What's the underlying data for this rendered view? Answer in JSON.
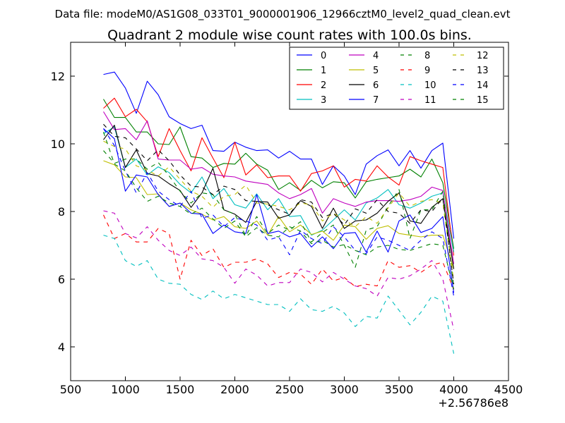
{
  "chart_data": {
    "type": "line",
    "suptitle": "Data file: modeM0/AS1G08_033T01_9000001906_12966cztM0_level2_quad_clean.evt",
    "title": "Quadrant 2 module wise count rates with 100.0s bins.",
    "xlabel": "",
    "ylabel": "",
    "offset_label": "+2.56786e8",
    "xlim": [
      500,
      4500
    ],
    "ylim": [
      3,
      13
    ],
    "xticks": [
      500,
      1000,
      1500,
      2000,
      2500,
      3000,
      3500,
      4000,
      4500
    ],
    "yticks": [
      4,
      6,
      8,
      10,
      12
    ],
    "grid": false,
    "legend_position": "top-right",
    "x": [
      800,
      900,
      1000,
      1100,
      1200,
      1300,
      1400,
      1500,
      1600,
      1700,
      1800,
      1900,
      2000,
      2100,
      2200,
      2300,
      2400,
      2500,
      2600,
      2700,
      2800,
      2900,
      3000,
      3100,
      3200,
      3300,
      3400,
      3500,
      3600,
      3700,
      3800,
      3900,
      4000
    ],
    "series": [
      {
        "name": "0",
        "color": "#0000ff",
        "dash": "solid",
        "values": [
          12.05,
          12.12,
          11.65,
          10.9,
          11.85,
          11.45,
          10.8,
          10.6,
          10.45,
          10.55,
          9.8,
          9.78,
          10.05,
          9.9,
          9.8,
          9.82,
          9.58,
          9.78,
          9.55,
          9.55,
          8.8,
          9.35,
          9.05,
          8.5,
          9.4,
          9.65,
          9.82,
          9.35,
          9.8,
          9.28,
          9.8,
          10.02,
          7.2
        ]
      },
      {
        "name": "1",
        "color": "#008000",
        "dash": "solid",
        "values": [
          11.32,
          10.78,
          10.78,
          10.35,
          10.35,
          10.0,
          9.98,
          10.5,
          9.62,
          9.58,
          9.3,
          9.42,
          9.4,
          9.72,
          9.4,
          9.22,
          8.65,
          8.85,
          8.62,
          8.92,
          8.7,
          8.88,
          8.85,
          8.4,
          8.88,
          8.95,
          9.0,
          9.05,
          9.25,
          9.02,
          9.55,
          8.85,
          6.9
        ]
      },
      {
        "name": "2",
        "color": "#ff0000",
        "dash": "solid",
        "values": [
          11.05,
          11.35,
          10.8,
          11.02,
          10.65,
          9.62,
          10.45,
          9.8,
          9.2,
          10.18,
          9.58,
          9.0,
          10.05,
          9.08,
          9.38,
          9.0,
          9.05,
          9.05,
          8.6,
          9.12,
          9.2,
          9.35,
          8.72,
          8.95,
          8.9,
          9.35,
          9.02,
          8.78,
          9.62,
          9.5,
          9.4,
          9.3,
          6.7
        ]
      },
      {
        "name": "3",
        "color": "#00bfbf",
        "dash": "solid",
        "values": [
          10.3,
          10.5,
          9.3,
          9.55,
          9.08,
          9.32,
          9.15,
          8.8,
          8.55,
          9.02,
          8.38,
          8.68,
          8.2,
          8.1,
          8.52,
          8.05,
          8.38,
          7.85,
          7.88,
          7.3,
          7.45,
          7.75,
          8.05,
          7.75,
          8.25,
          8.4,
          8.65,
          8.2,
          8.1,
          8.25,
          8.45,
          8.55,
          6.8
        ]
      },
      {
        "name": "4",
        "color": "#bf00bf",
        "dash": "solid",
        "values": [
          10.95,
          10.42,
          10.45,
          10.12,
          10.68,
          9.55,
          9.52,
          9.52,
          9.25,
          9.3,
          9.1,
          9.05,
          9.02,
          8.9,
          8.85,
          8.8,
          8.55,
          8.38,
          8.5,
          8.68,
          7.95,
          8.38,
          8.25,
          8.15,
          8.28,
          8.32,
          8.32,
          8.3,
          8.35,
          8.45,
          8.72,
          8.62,
          6.45
        ]
      },
      {
        "name": "5",
        "color": "#bfbf00",
        "dash": "solid",
        "values": [
          9.5,
          9.38,
          9.02,
          9.0,
          8.5,
          8.52,
          8.15,
          8.25,
          8.05,
          7.92,
          7.75,
          7.85,
          7.55,
          7.5,
          7.72,
          7.3,
          7.85,
          7.4,
          7.6,
          7.32,
          7.42,
          7.15,
          7.6,
          7.55,
          7.18,
          7.5,
          7.58,
          7.35,
          7.3,
          7.25,
          7.3,
          7.3,
          6.3
        ]
      },
      {
        "name": "6",
        "color": "#000000",
        "dash": "solid",
        "values": [
          10.12,
          10.55,
          9.3,
          9.82,
          9.12,
          9.05,
          8.82,
          8.62,
          8.12,
          8.55,
          9.28,
          8.05,
          7.92,
          7.68,
          8.3,
          8.28,
          7.8,
          7.9,
          8.32,
          8.15,
          7.5,
          8.1,
          7.5,
          7.72,
          7.75,
          7.95,
          8.3,
          8.55,
          7.72,
          7.65,
          8.12,
          8.38,
          6.3
        ]
      },
      {
        "name": "7",
        "color": "#0000ff",
        "dash": "solid",
        "values": [
          10.45,
          10.15,
          8.6,
          9.08,
          9.02,
          8.5,
          8.15,
          8.25,
          7.95,
          7.92,
          7.35,
          7.6,
          7.4,
          7.35,
          8.5,
          7.35,
          7.42,
          7.25,
          7.35,
          6.95,
          7.25,
          6.9,
          7.35,
          7.38,
          6.8,
          7.42,
          6.8,
          7.72,
          7.9,
          7.38,
          7.5,
          7.85,
          5.6
        ]
      },
      {
        "name": "8",
        "color": "#008000",
        "dash": "dashed",
        "values": [
          9.8,
          9.42,
          9.55,
          9.55,
          9.25,
          9.45,
          9.05,
          8.6,
          8.25,
          8.55,
          8.5,
          8.05,
          7.92,
          7.28,
          7.85,
          7.35,
          7.6,
          7.45,
          7.7,
          7.1,
          7.38,
          7.6,
          7.0,
          6.35,
          7.45,
          7.55,
          8.15,
          8.65,
          7.2,
          8.05,
          8.05,
          8.6,
          5.75
        ]
      },
      {
        "name": "9",
        "color": "#ff0000",
        "dash": "dashed",
        "values": [
          7.9,
          7.2,
          7.35,
          7.1,
          7.1,
          7.5,
          7.35,
          6.0,
          7.15,
          6.7,
          6.9,
          6.35,
          6.5,
          6.5,
          6.6,
          6.45,
          6.05,
          6.2,
          6.15,
          5.85,
          6.3,
          5.95,
          6.05,
          5.78,
          5.85,
          5.8,
          6.55,
          6.35,
          6.4,
          6.2,
          6.42,
          6.5,
          5.7
        ]
      },
      {
        "name": "10",
        "color": "#00bfbf",
        "dash": "dashed",
        "values": [
          7.3,
          7.2,
          6.55,
          6.38,
          6.55,
          6.0,
          5.88,
          5.85,
          5.55,
          5.4,
          5.65,
          5.42,
          5.55,
          5.45,
          5.35,
          5.25,
          5.25,
          5.05,
          5.42,
          5.1,
          5.05,
          5.2,
          5.0,
          4.6,
          4.9,
          4.85,
          5.5,
          5.08,
          4.65,
          5.02,
          5.5,
          5.35,
          3.8
        ]
      },
      {
        "name": "11",
        "color": "#bf00bf",
        "dash": "dashed",
        "values": [
          8.02,
          7.95,
          7.35,
          7.22,
          7.55,
          7.15,
          6.85,
          6.7,
          6.95,
          6.6,
          6.55,
          6.35,
          5.88,
          6.3,
          6.12,
          5.8,
          5.9,
          5.9,
          6.3,
          6.2,
          5.92,
          6.2,
          6.0,
          5.8,
          5.72,
          5.5,
          6.05,
          6.0,
          6.1,
          6.3,
          6.55,
          6.0,
          4.5
        ]
      },
      {
        "name": "12",
        "color": "#bfbf00",
        "dash": "dashed",
        "values": [
          10.08,
          9.92,
          9.85,
          9.35,
          9.22,
          9.05,
          9.32,
          8.95,
          8.6,
          8.45,
          8.12,
          8.45,
          8.5,
          8.78,
          8.25,
          8.22,
          8.15,
          8.05,
          8.25,
          8.2,
          7.72,
          7.95,
          7.75,
          7.55,
          7.85,
          7.65,
          8.1,
          8.55,
          8.15,
          8.3,
          8.35,
          8.25,
          5.95
        ]
      },
      {
        "name": "13",
        "color": "#000000",
        "dash": "dashed",
        "values": [
          10.58,
          10.22,
          10.18,
          9.85,
          9.5,
          9.82,
          9.5,
          9.08,
          8.75,
          8.72,
          8.5,
          8.75,
          8.65,
          8.32,
          8.3,
          8.2,
          8.05,
          7.92,
          8.35,
          8.28,
          7.82,
          7.95,
          7.6,
          8.08,
          7.95,
          8.35,
          8.0,
          7.95,
          7.65,
          8.05,
          8.0,
          8.4,
          5.85
        ]
      },
      {
        "name": "14",
        "color": "#0000ff",
        "dash": "dashed",
        "values": [
          10.45,
          9.95,
          9.2,
          8.55,
          9.15,
          8.6,
          8.35,
          8.15,
          8.6,
          7.8,
          7.9,
          7.55,
          7.82,
          7.72,
          7.6,
          7.15,
          7.25,
          6.72,
          7.45,
          7.2,
          7.05,
          7.55,
          7.25,
          6.85,
          6.75,
          7.25,
          7.15,
          7.0,
          6.85,
          7.15,
          7.4,
          7.2,
          5.5
        ]
      },
      {
        "name": "15",
        "color": "#008000",
        "dash": "dashed",
        "values": [
          10.35,
          9.4,
          9.2,
          8.7,
          8.3,
          8.45,
          8.25,
          8.15,
          7.92,
          8.1,
          7.78,
          7.5,
          7.72,
          7.25,
          7.52,
          7.3,
          7.25,
          7.55,
          7.42,
          7.05,
          7.15,
          6.95,
          7.02,
          6.85,
          6.72,
          6.95,
          7.0,
          6.88,
          6.85,
          6.95,
          7.05,
          7.0,
          5.7
        ]
      }
    ]
  }
}
